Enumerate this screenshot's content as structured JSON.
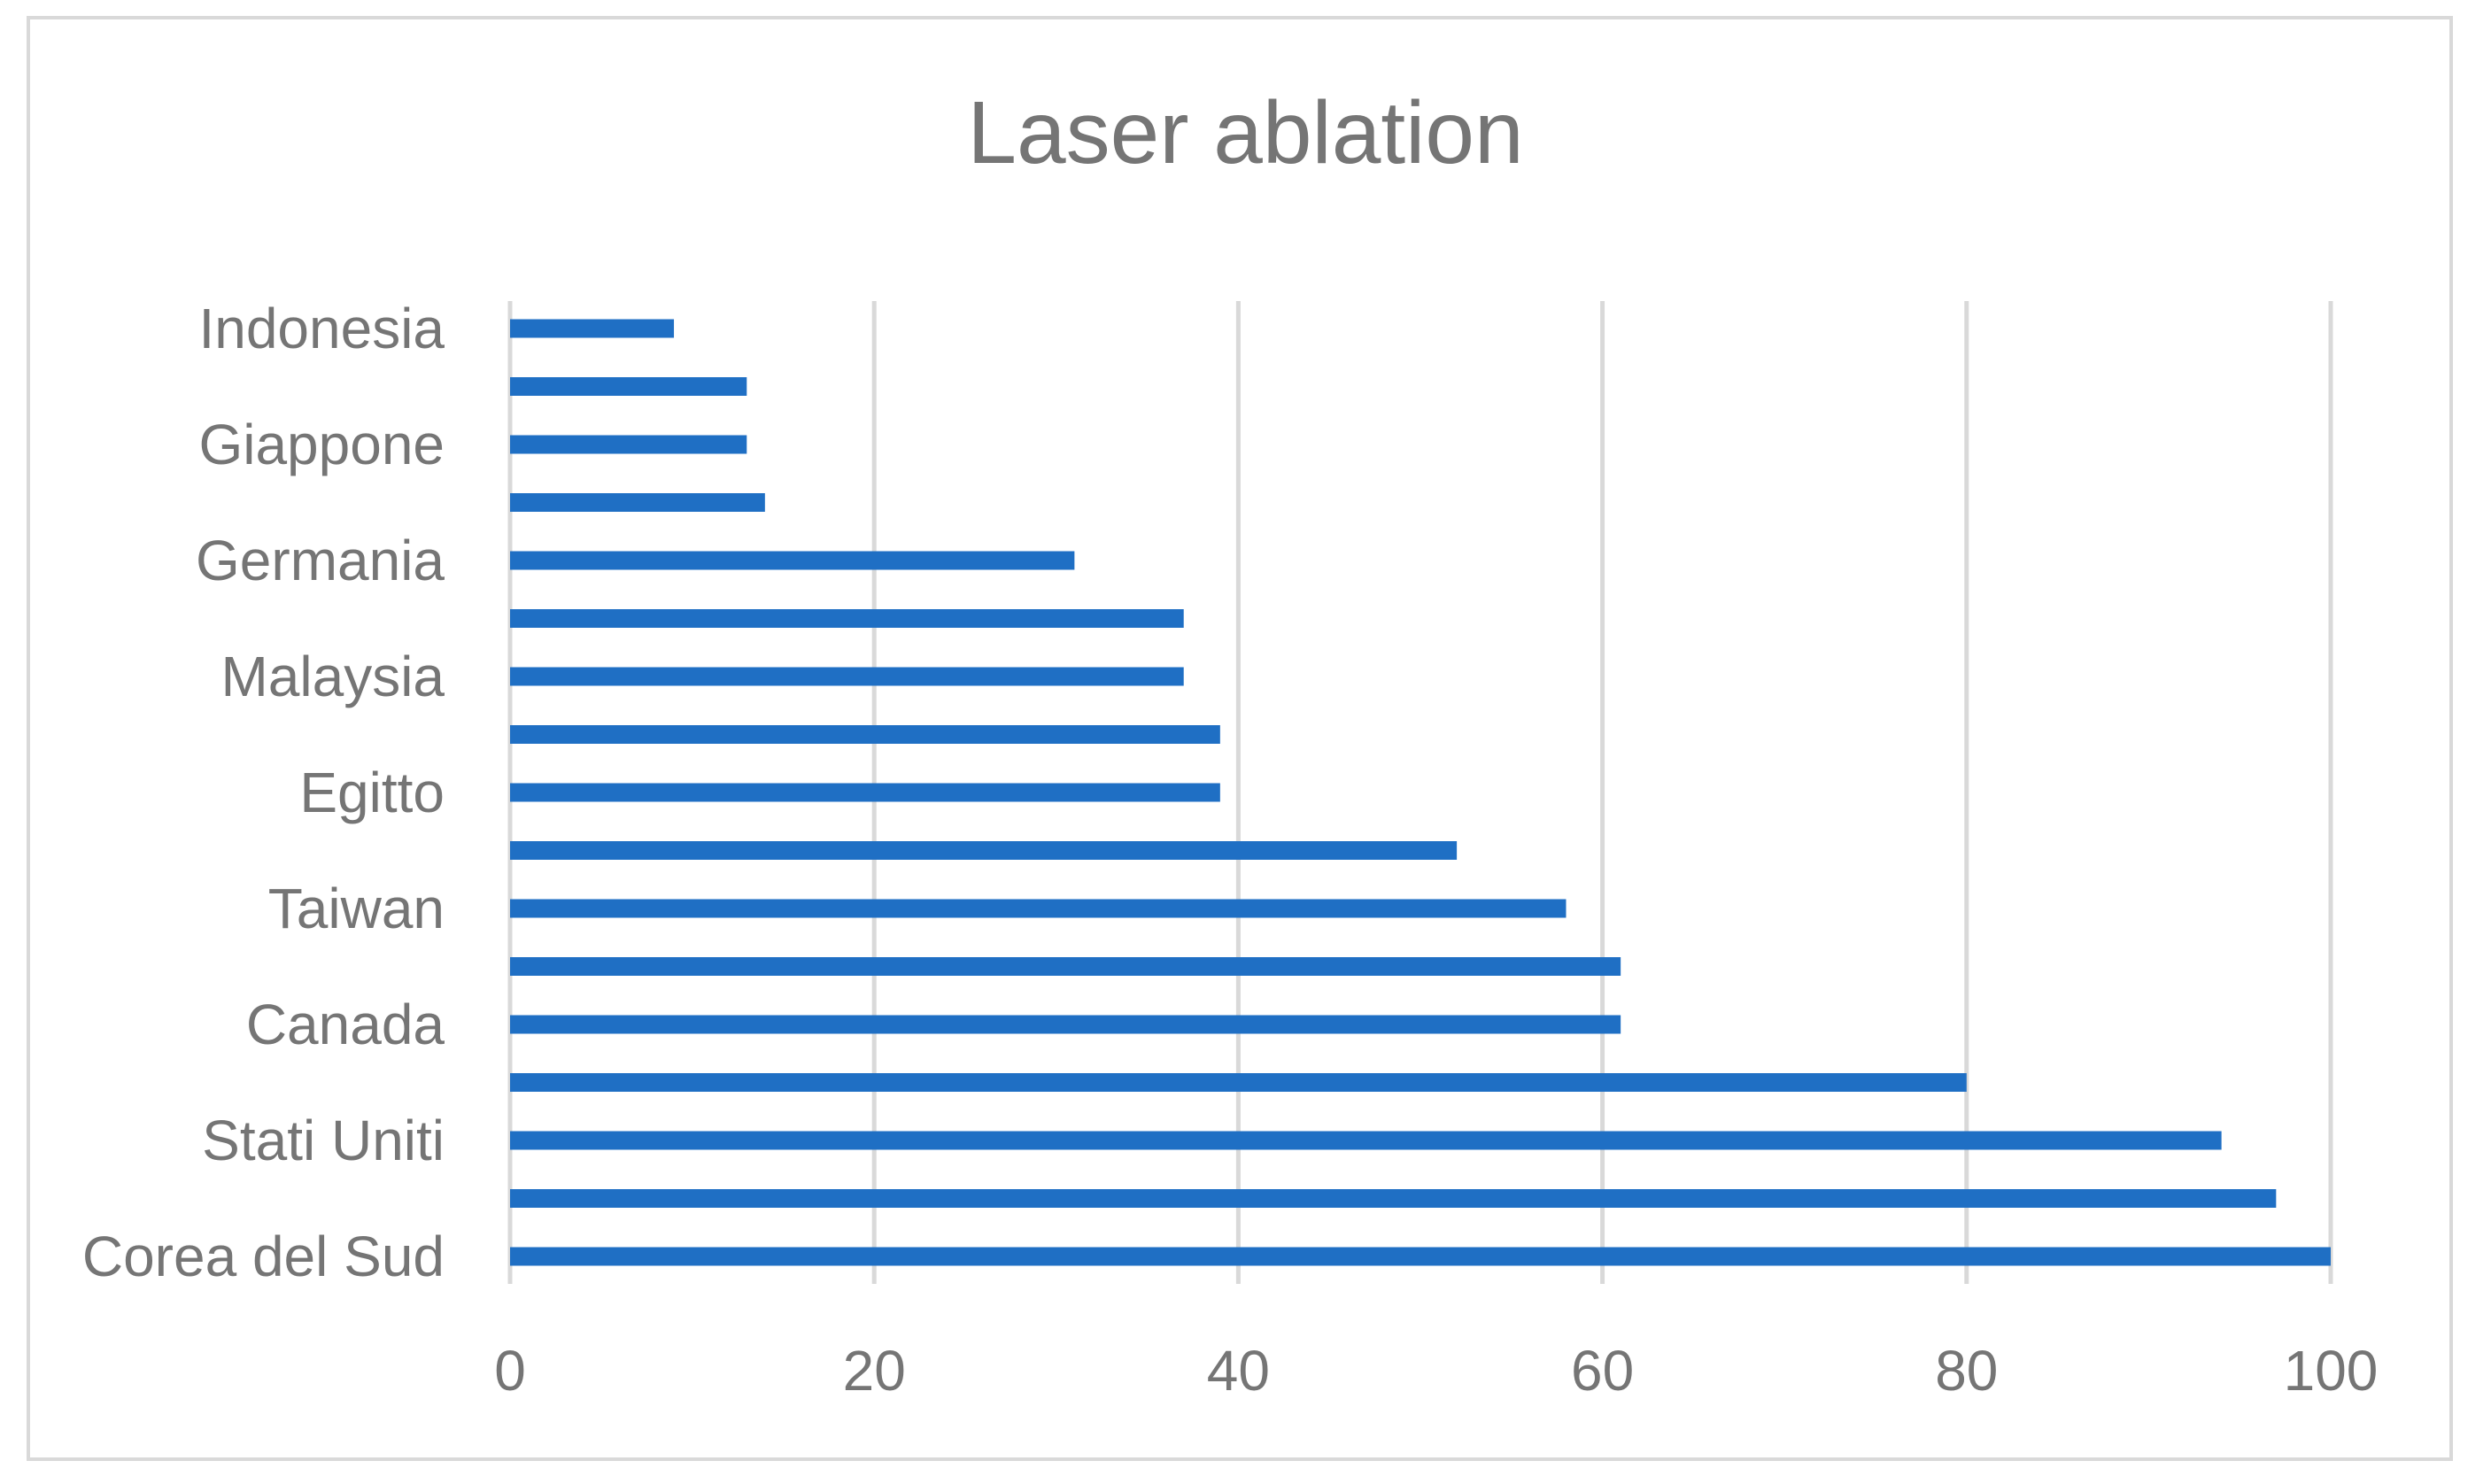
{
  "chart_data": {
    "type": "bar",
    "orientation": "horizontal",
    "title": "Laser ablation",
    "xlabel": "",
    "ylabel": "",
    "categories": [
      "Corea del Sud",
      "",
      "Stati Uniti",
      "",
      "Canada",
      "",
      "Taiwan",
      "",
      "Egitto",
      "",
      "Malaysia",
      "",
      "Germania",
      "",
      "Giappone",
      "",
      "Indonesia"
    ],
    "values": [
      100,
      97,
      94,
      80,
      61,
      61,
      58,
      52,
      39,
      39,
      37,
      37,
      31,
      14,
      13,
      13,
      9
    ],
    "xlim": [
      0,
      100
    ],
    "xticks": [
      "0",
      "20",
      "40",
      "60",
      "80",
      "100"
    ],
    "grid": true,
    "legend": "none",
    "colors": {
      "bar": "#1f6fc4",
      "grid": "#d9d9d9",
      "text": "#757575",
      "border": "#d9d9d9"
    }
  }
}
